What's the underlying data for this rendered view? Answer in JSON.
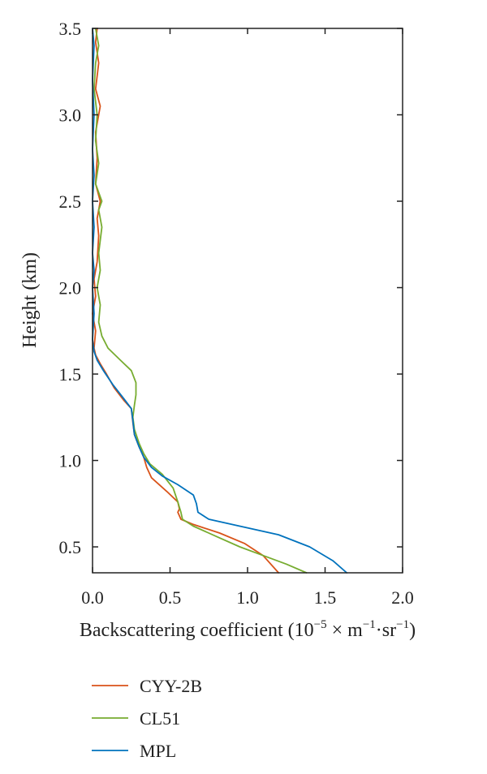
{
  "chart_data": {
    "type": "line",
    "title": "",
    "xlabel": "Backscattering coefficient (10",
    "xlabel_exp1": "−5",
    "xlabel_mid": " × m",
    "xlabel_exp2": "−1",
    "xlabel_dot": "·sr",
    "xlabel_exp3": "−1",
    "xlabel_end": ")",
    "ylabel": "Height (km)",
    "xlim": [
      0.0,
      2.0
    ],
    "ylim": [
      0.35,
      3.5
    ],
    "xticks": [
      "0.0",
      "0.5",
      "1.0",
      "1.5",
      "2.0"
    ],
    "yticks": [
      "0.5",
      "1.0",
      "1.5",
      "2.0",
      "2.5",
      "3.0",
      "3.5"
    ],
    "grid": false,
    "legend_position": "below",
    "series": [
      {
        "name": "CYY-2B",
        "color": "#d95319",
        "points": [
          [
            1.2,
            0.35
          ],
          [
            1.1,
            0.45
          ],
          [
            0.98,
            0.52
          ],
          [
            0.82,
            0.58
          ],
          [
            0.65,
            0.63
          ],
          [
            0.57,
            0.66
          ],
          [
            0.55,
            0.7
          ],
          [
            0.56,
            0.72
          ],
          [
            0.55,
            0.76
          ],
          [
            0.48,
            0.82
          ],
          [
            0.38,
            0.9
          ],
          [
            0.35,
            0.96
          ],
          [
            0.33,
            1.02
          ],
          [
            0.3,
            1.08
          ],
          [
            0.27,
            1.15
          ],
          [
            0.26,
            1.22
          ],
          [
            0.25,
            1.3
          ],
          [
            0.2,
            1.35
          ],
          [
            0.14,
            1.42
          ],
          [
            0.09,
            1.5
          ],
          [
            0.05,
            1.56
          ],
          [
            0.02,
            1.61
          ],
          [
            0.01,
            1.65
          ],
          [
            0.02,
            1.75
          ],
          [
            0.0,
            1.85
          ],
          [
            0.02,
            1.95
          ],
          [
            0.01,
            2.05
          ],
          [
            0.03,
            2.15
          ],
          [
            0.04,
            2.3
          ],
          [
            0.03,
            2.4
          ],
          [
            0.05,
            2.5
          ],
          [
            0.02,
            2.6
          ],
          [
            0.03,
            2.75
          ],
          [
            0.02,
            2.9
          ],
          [
            0.05,
            3.05
          ],
          [
            0.02,
            3.15
          ],
          [
            0.04,
            3.3
          ],
          [
            0.02,
            3.42
          ],
          [
            0.03,
            3.5
          ]
        ]
      },
      {
        "name": "CL51",
        "color": "#77ac30",
        "points": [
          [
            1.38,
            0.35
          ],
          [
            1.25,
            0.4
          ],
          [
            1.1,
            0.45
          ],
          [
            0.95,
            0.5
          ],
          [
            0.8,
            0.56
          ],
          [
            0.65,
            0.62
          ],
          [
            0.58,
            0.66
          ],
          [
            0.57,
            0.7
          ],
          [
            0.55,
            0.76
          ],
          [
            0.52,
            0.84
          ],
          [
            0.45,
            0.92
          ],
          [
            0.37,
            0.98
          ],
          [
            0.33,
            1.04
          ],
          [
            0.3,
            1.1
          ],
          [
            0.27,
            1.18
          ],
          [
            0.26,
            1.25
          ],
          [
            0.27,
            1.32
          ],
          [
            0.28,
            1.38
          ],
          [
            0.28,
            1.45
          ],
          [
            0.25,
            1.52
          ],
          [
            0.18,
            1.58
          ],
          [
            0.1,
            1.65
          ],
          [
            0.06,
            1.72
          ],
          [
            0.04,
            1.8
          ],
          [
            0.05,
            1.9
          ],
          [
            0.03,
            2.0
          ],
          [
            0.05,
            2.1
          ],
          [
            0.04,
            2.2
          ],
          [
            0.06,
            2.35
          ],
          [
            0.04,
            2.45
          ],
          [
            0.06,
            2.5
          ],
          [
            0.02,
            2.6
          ],
          [
            0.04,
            2.72
          ],
          [
            0.02,
            2.85
          ],
          [
            0.03,
            3.0
          ],
          [
            0.01,
            3.15
          ],
          [
            0.02,
            3.3
          ],
          [
            0.04,
            3.4
          ],
          [
            0.02,
            3.5
          ]
        ]
      },
      {
        "name": "MPL",
        "color": "#0072bd",
        "points": [
          [
            1.64,
            0.35
          ],
          [
            1.55,
            0.42
          ],
          [
            1.4,
            0.5
          ],
          [
            1.2,
            0.57
          ],
          [
            0.95,
            0.62
          ],
          [
            0.75,
            0.66
          ],
          [
            0.68,
            0.7
          ],
          [
            0.67,
            0.75
          ],
          [
            0.65,
            0.8
          ],
          [
            0.55,
            0.86
          ],
          [
            0.45,
            0.91
          ],
          [
            0.38,
            0.96
          ],
          [
            0.33,
            1.02
          ],
          [
            0.3,
            1.08
          ],
          [
            0.27,
            1.15
          ],
          [
            0.26,
            1.23
          ],
          [
            0.25,
            1.3
          ],
          [
            0.2,
            1.36
          ],
          [
            0.13,
            1.44
          ],
          [
            0.07,
            1.52
          ],
          [
            0.03,
            1.58
          ],
          [
            0.01,
            1.63
          ],
          [
            0.0,
            1.7
          ],
          [
            0.01,
            1.85
          ],
          [
            0.0,
            2.0
          ],
          [
            0.01,
            2.1
          ],
          [
            0.0,
            2.2
          ],
          [
            0.01,
            2.35
          ],
          [
            0.0,
            2.5
          ],
          [
            0.01,
            2.65
          ],
          [
            0.0,
            2.8
          ],
          [
            0.01,
            3.0
          ],
          [
            0.0,
            3.2
          ],
          [
            0.01,
            3.4
          ],
          [
            0.0,
            3.5
          ]
        ]
      }
    ]
  }
}
